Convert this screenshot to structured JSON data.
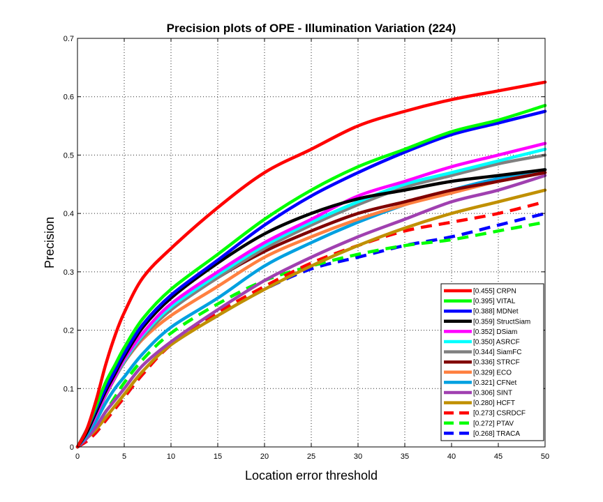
{
  "chart_data": {
    "type": "line",
    "title": "Precision plots of OPE - Illumination Variation (224)",
    "xlabel": "Location error threshold",
    "ylabel": "Precision",
    "xlim": [
      0,
      50
    ],
    "ylim": [
      0,
      0.7
    ],
    "xticks": [
      0,
      5,
      10,
      15,
      20,
      25,
      30,
      35,
      40,
      45,
      50
    ],
    "yticks": [
      0,
      0.1,
      0.2,
      0.3,
      0.4,
      0.5,
      0.6,
      0.7
    ],
    "xtick_labels": [
      "0",
      "5",
      "10",
      "15",
      "20",
      "25",
      "30",
      "35",
      "40",
      "45",
      "50"
    ],
    "ytick_labels": [
      "0",
      "0.1",
      "0.2",
      "0.3",
      "0.4",
      "0.5",
      "0.6",
      "0.7"
    ],
    "grid": true,
    "legend_position": "bottom-right",
    "x": [
      0,
      1,
      2,
      3,
      4,
      5,
      7,
      10,
      15,
      20,
      25,
      30,
      35,
      40,
      45,
      50
    ],
    "series": [
      {
        "name": "CRPN",
        "legend": "[0.455] CRPN",
        "color": "#ff0000",
        "dashed": false,
        "values": [
          0,
          0.03,
          0.08,
          0.14,
          0.19,
          0.23,
          0.29,
          0.34,
          0.41,
          0.47,
          0.51,
          0.55,
          0.575,
          0.595,
          0.61,
          0.625
        ]
      },
      {
        "name": "VITAL",
        "legend": "[0.395] VITAL",
        "color": "#00ff00",
        "dashed": false,
        "values": [
          0,
          0.03,
          0.07,
          0.11,
          0.14,
          0.17,
          0.22,
          0.27,
          0.33,
          0.39,
          0.44,
          0.48,
          0.51,
          0.54,
          0.56,
          0.585
        ]
      },
      {
        "name": "MDNet",
        "legend": "[0.388] MDNet",
        "color": "#0000ff",
        "dashed": false,
        "values": [
          0,
          0.03,
          0.065,
          0.1,
          0.13,
          0.16,
          0.21,
          0.26,
          0.32,
          0.38,
          0.43,
          0.47,
          0.505,
          0.535,
          0.555,
          0.575
        ]
      },
      {
        "name": "StructSiam",
        "legend": "[0.359] StructSiam",
        "color": "#000000",
        "dashed": false,
        "values": [
          0,
          0.025,
          0.06,
          0.095,
          0.125,
          0.155,
          0.205,
          0.255,
          0.315,
          0.365,
          0.4,
          0.425,
          0.44,
          0.455,
          0.465,
          0.475
        ]
      },
      {
        "name": "DSiam",
        "legend": "[0.352] DSiam",
        "color": "#ff00ff",
        "dashed": false,
        "values": [
          0,
          0.025,
          0.055,
          0.09,
          0.12,
          0.15,
          0.195,
          0.245,
          0.3,
          0.35,
          0.39,
          0.43,
          0.455,
          0.48,
          0.5,
          0.52
        ]
      },
      {
        "name": "ASRCF",
        "legend": "[0.350] ASRCF",
        "color": "#00ffff",
        "dashed": false,
        "values": [
          0,
          0.025,
          0.055,
          0.09,
          0.12,
          0.148,
          0.192,
          0.24,
          0.295,
          0.345,
          0.385,
          0.42,
          0.45,
          0.47,
          0.49,
          0.51
        ]
      },
      {
        "name": "SiamFC",
        "legend": "[0.344] SiamFC",
        "color": "#808080",
        "dashed": false,
        "values": [
          0,
          0.025,
          0.055,
          0.088,
          0.118,
          0.145,
          0.188,
          0.235,
          0.29,
          0.34,
          0.38,
          0.415,
          0.445,
          0.465,
          0.485,
          0.5
        ]
      },
      {
        "name": "STRCF",
        "legend": "[0.336] STRCF",
        "color": "#800000",
        "dashed": false,
        "values": [
          0,
          0.025,
          0.055,
          0.088,
          0.118,
          0.145,
          0.19,
          0.235,
          0.29,
          0.335,
          0.37,
          0.4,
          0.42,
          0.44,
          0.455,
          0.47
        ]
      },
      {
        "name": "ECO",
        "legend": "[0.329] ECO",
        "color": "#ff8040",
        "dashed": false,
        "values": [
          0,
          0.025,
          0.055,
          0.09,
          0.12,
          0.145,
          0.185,
          0.225,
          0.275,
          0.325,
          0.36,
          0.39,
          0.415,
          0.435,
          0.455,
          0.47
        ]
      },
      {
        "name": "CFNet",
        "legend": "[0.321] CFNet",
        "color": "#00a0e0",
        "dashed": false,
        "values": [
          0,
          0.02,
          0.045,
          0.075,
          0.1,
          0.12,
          0.16,
          0.205,
          0.255,
          0.31,
          0.35,
          0.385,
          0.415,
          0.44,
          0.46,
          0.475
        ]
      },
      {
        "name": "SINT",
        "legend": "[0.306] SINT",
        "color": "#a040b0",
        "dashed": false,
        "values": [
          0,
          0.015,
          0.035,
          0.06,
          0.08,
          0.1,
          0.14,
          0.18,
          0.235,
          0.285,
          0.325,
          0.36,
          0.39,
          0.42,
          0.44,
          0.465
        ]
      },
      {
        "name": "HCFT",
        "legend": "[0.280] HCFT",
        "color": "#c09000",
        "dashed": false,
        "values": [
          0,
          0.015,
          0.03,
          0.05,
          0.07,
          0.09,
          0.13,
          0.175,
          0.225,
          0.27,
          0.31,
          0.345,
          0.375,
          0.4,
          0.42,
          0.44
        ]
      },
      {
        "name": "CSRDCF",
        "legend": "[0.273] CSRDCF",
        "color": "#ff0000",
        "dashed": true,
        "values": [
          0,
          0.01,
          0.025,
          0.045,
          0.065,
          0.085,
          0.125,
          0.175,
          0.23,
          0.275,
          0.315,
          0.345,
          0.37,
          0.385,
          0.4,
          0.42
        ]
      },
      {
        "name": "PTAV",
        "legend": "[0.272] PTAV",
        "color": "#00ff00",
        "dashed": true,
        "values": [
          0,
          0.015,
          0.035,
          0.06,
          0.085,
          0.11,
          0.15,
          0.195,
          0.245,
          0.285,
          0.31,
          0.33,
          0.345,
          0.355,
          0.37,
          0.385
        ]
      },
      {
        "name": "TRACA",
        "legend": "[0.268] TRACA",
        "color": "#0000ff",
        "dashed": true,
        "values": [
          0,
          0.01,
          0.025,
          0.045,
          0.065,
          0.085,
          0.125,
          0.175,
          0.225,
          0.27,
          0.305,
          0.325,
          0.345,
          0.36,
          0.38,
          0.4
        ]
      }
    ]
  }
}
